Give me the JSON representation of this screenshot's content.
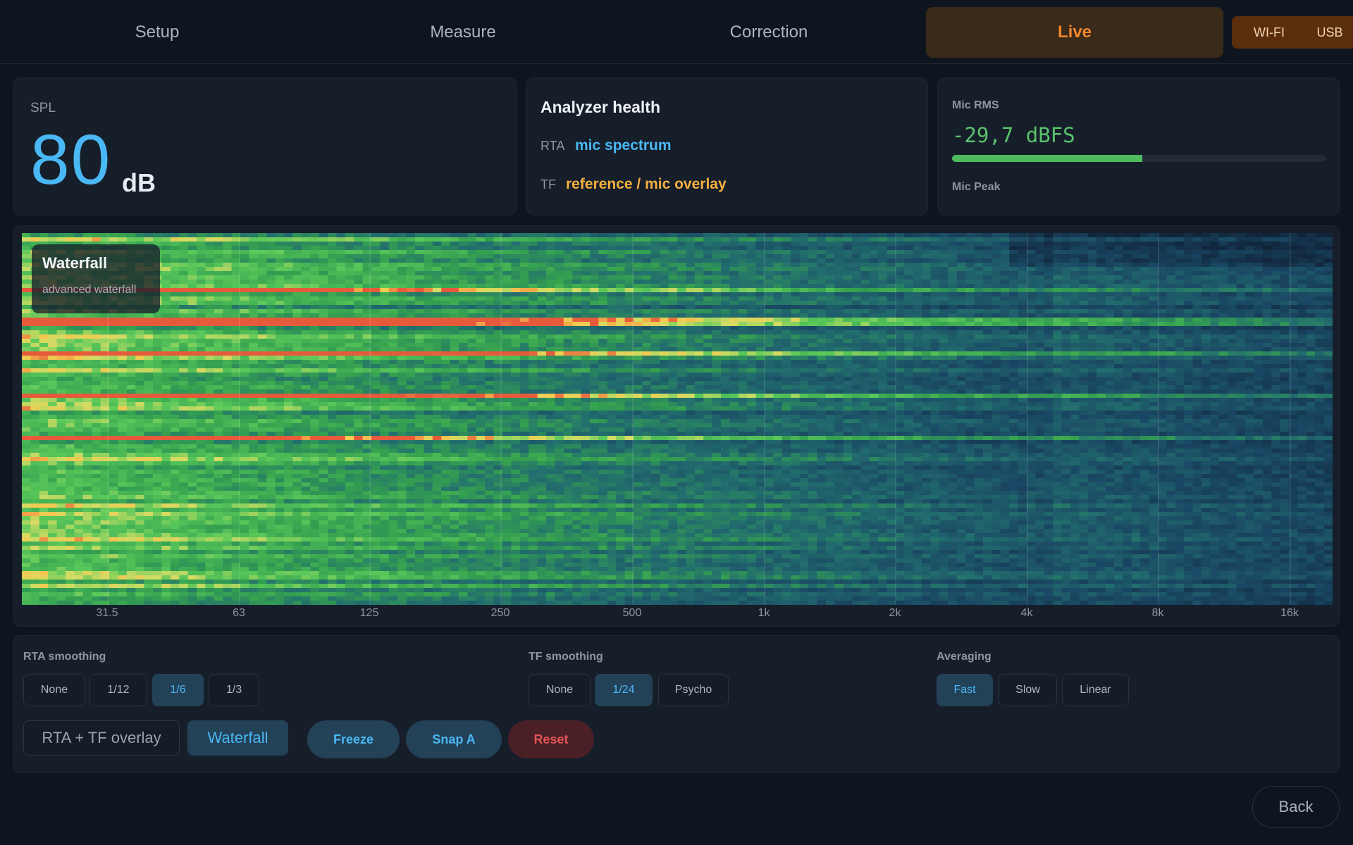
{
  "nav": {
    "tabs": [
      {
        "label": "Setup",
        "active": false
      },
      {
        "label": "Measure",
        "active": false
      },
      {
        "label": "Correction",
        "active": false
      },
      {
        "label": "Live",
        "active": true
      }
    ],
    "badges": [
      "WI-FI",
      "USB"
    ]
  },
  "spl": {
    "label": "SPL",
    "value": "80",
    "unit": "dB"
  },
  "health": {
    "title": "Analyzer health",
    "rta_key": "RTA",
    "rta_value": "mic spectrum",
    "tf_key": "TF",
    "tf_value": "reference / mic overlay",
    "colors": {
      "rta": "#4ab8f4",
      "tf": "#f5b041"
    }
  },
  "mic": {
    "rms_label": "Mic RMS",
    "rms_value": "-29,7 dBFS",
    "rms_level_fraction": 0.51,
    "peak_label": "Mic Peak"
  },
  "waterfall": {
    "title": "Waterfall",
    "subtitle": "advanced waterfall",
    "freq_ticks": [
      "31.5",
      "63",
      "125",
      "250",
      "500",
      "1k",
      "2k",
      "4k",
      "8k",
      "16k"
    ]
  },
  "controls": {
    "rta_smoothing": {
      "label": "RTA smoothing",
      "options": [
        "None",
        "1/12",
        "1/6",
        "1/3"
      ],
      "selected": "1/6"
    },
    "tf_smoothing": {
      "label": "TF smoothing",
      "options": [
        "None",
        "1/24",
        "Psycho"
      ],
      "selected": "1/24"
    },
    "averaging": {
      "label": "Averaging",
      "options": [
        "Fast",
        "Slow",
        "Linear"
      ],
      "selected": "Fast"
    },
    "view_modes": {
      "options": [
        "RTA + TF overlay",
        "Waterfall"
      ],
      "selected": "Waterfall"
    },
    "freeze": "Freeze",
    "snap": "Snap A",
    "reset": "Reset"
  },
  "back": "Back",
  "colors": {
    "accent": "#f0862a",
    "primary": "#4ab8f4",
    "good": "#4dba5d",
    "danger": "#e05555"
  }
}
